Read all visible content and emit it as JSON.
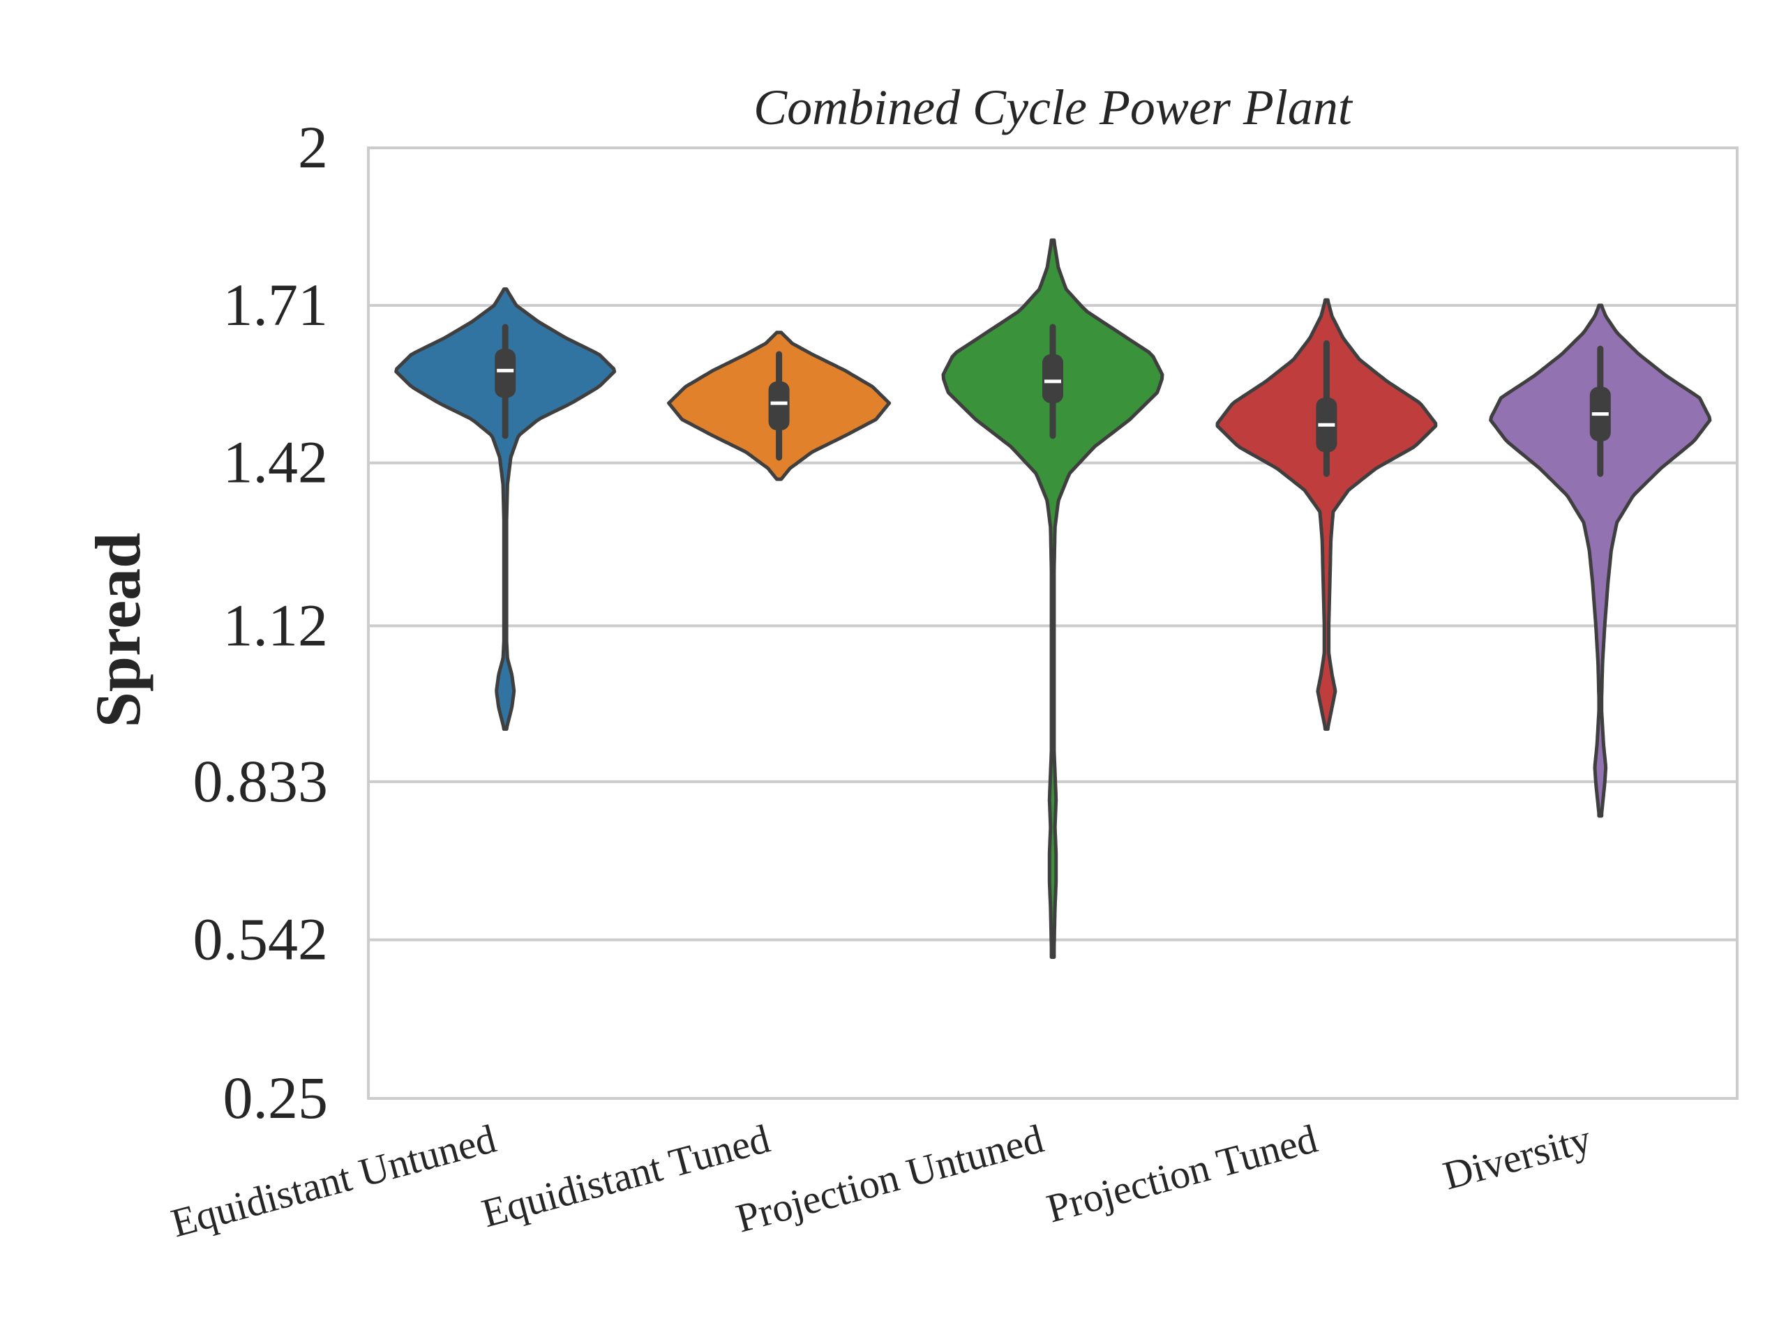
{
  "chart_data": {
    "type": "violin",
    "title": "Combined Cycle Power Plant",
    "xlabel": "",
    "ylabel": "Spread",
    "ylim": [
      0.25,
      2
    ],
    "yticks": [
      "0.25",
      "0.542",
      "0.833",
      "1.12",
      "1.42",
      "1.71",
      "2"
    ],
    "ytick_values": [
      0.25,
      0.542,
      0.833,
      1.12,
      1.42,
      1.71,
      2.0
    ],
    "grid": "horizontal",
    "legend": "none",
    "categories": [
      "Equidistant Untuned",
      "Equidistant Tuned",
      "Projection Untuned",
      "Projection Tuned",
      "Diversity"
    ],
    "series": [
      {
        "category": "Equidistant Untuned",
        "color": "#3274a1",
        "min": 0.93,
        "max": 1.74,
        "q1": 1.54,
        "median": 1.59,
        "q3": 1.63,
        "whisker_low": 1.47,
        "whisker_high": 1.67,
        "density": [
          [
            0.93,
            0.01
          ],
          [
            0.97,
            0.06
          ],
          [
            1.0,
            0.08
          ],
          [
            1.03,
            0.06
          ],
          [
            1.06,
            0.02
          ],
          [
            1.1,
            0.01
          ],
          [
            1.2,
            0.01
          ],
          [
            1.3,
            0.01
          ],
          [
            1.38,
            0.02
          ],
          [
            1.43,
            0.05
          ],
          [
            1.47,
            0.12
          ],
          [
            1.5,
            0.3
          ],
          [
            1.53,
            0.6
          ],
          [
            1.56,
            0.85
          ],
          [
            1.59,
            1.0
          ],
          [
            1.62,
            0.85
          ],
          [
            1.65,
            0.55
          ],
          [
            1.68,
            0.3
          ],
          [
            1.71,
            0.1
          ],
          [
            1.74,
            0.01
          ]
        ]
      },
      {
        "category": "Equidistant Tuned",
        "color": "#e1812c",
        "min": 1.39,
        "max": 1.66,
        "q1": 1.48,
        "median": 1.53,
        "q3": 1.57,
        "whisker_low": 1.43,
        "whisker_high": 1.62,
        "density": [
          [
            1.39,
            0.02
          ],
          [
            1.41,
            0.1
          ],
          [
            1.44,
            0.3
          ],
          [
            1.47,
            0.6
          ],
          [
            1.5,
            0.88
          ],
          [
            1.53,
            1.0
          ],
          [
            1.56,
            0.85
          ],
          [
            1.59,
            0.6
          ],
          [
            1.62,
            0.3
          ],
          [
            1.64,
            0.12
          ],
          [
            1.66,
            0.02
          ]
        ]
      },
      {
        "category": "Projection Untuned",
        "color": "#3a923a",
        "min": 0.51,
        "max": 1.83,
        "q1": 1.53,
        "median": 1.57,
        "q3": 1.62,
        "whisker_low": 1.47,
        "whisker_high": 1.67,
        "density": [
          [
            0.51,
            0.01
          ],
          [
            0.6,
            0.02
          ],
          [
            0.65,
            0.03
          ],
          [
            0.7,
            0.03
          ],
          [
            0.75,
            0.02
          ],
          [
            0.8,
            0.03
          ],
          [
            0.85,
            0.02
          ],
          [
            0.9,
            0.01
          ],
          [
            1.0,
            0.01
          ],
          [
            1.1,
            0.01
          ],
          [
            1.2,
            0.01
          ],
          [
            1.3,
            0.02
          ],
          [
            1.35,
            0.05
          ],
          [
            1.4,
            0.15
          ],
          [
            1.45,
            0.38
          ],
          [
            1.5,
            0.7
          ],
          [
            1.55,
            0.95
          ],
          [
            1.58,
            1.0
          ],
          [
            1.62,
            0.9
          ],
          [
            1.66,
            0.6
          ],
          [
            1.7,
            0.3
          ],
          [
            1.74,
            0.12
          ],
          [
            1.78,
            0.05
          ],
          [
            1.83,
            0.01
          ]
        ]
      },
      {
        "category": "Projection Tuned",
        "color": "#c03d3e",
        "min": 0.93,
        "max": 1.72,
        "q1": 1.44,
        "median": 1.49,
        "q3": 1.54,
        "whisker_low": 1.4,
        "whisker_high": 1.64,
        "density": [
          [
            0.93,
            0.01
          ],
          [
            0.97,
            0.05
          ],
          [
            1.0,
            0.08
          ],
          [
            1.03,
            0.05
          ],
          [
            1.07,
            0.02
          ],
          [
            1.12,
            0.02
          ],
          [
            1.2,
            0.03
          ],
          [
            1.28,
            0.04
          ],
          [
            1.33,
            0.06
          ],
          [
            1.37,
            0.2
          ],
          [
            1.41,
            0.45
          ],
          [
            1.45,
            0.8
          ],
          [
            1.49,
            1.0
          ],
          [
            1.53,
            0.85
          ],
          [
            1.57,
            0.55
          ],
          [
            1.61,
            0.3
          ],
          [
            1.65,
            0.15
          ],
          [
            1.69,
            0.05
          ],
          [
            1.72,
            0.01
          ]
        ]
      },
      {
        "category": "Diversity",
        "color": "#9372b2",
        "min": 0.77,
        "max": 1.71,
        "q1": 1.46,
        "median": 1.51,
        "q3": 1.56,
        "whisker_low": 1.4,
        "whisker_high": 1.63,
        "density": [
          [
            0.77,
            0.01
          ],
          [
            0.83,
            0.04
          ],
          [
            0.86,
            0.05
          ],
          [
            0.9,
            0.03
          ],
          [
            0.97,
            0.01
          ],
          [
            1.05,
            0.02
          ],
          [
            1.12,
            0.04
          ],
          [
            1.2,
            0.07
          ],
          [
            1.26,
            0.1
          ],
          [
            1.31,
            0.15
          ],
          [
            1.36,
            0.3
          ],
          [
            1.41,
            0.55
          ],
          [
            1.46,
            0.85
          ],
          [
            1.5,
            1.0
          ],
          [
            1.54,
            0.9
          ],
          [
            1.58,
            0.6
          ],
          [
            1.62,
            0.35
          ],
          [
            1.66,
            0.15
          ],
          [
            1.69,
            0.05
          ],
          [
            1.71,
            0.01
          ]
        ]
      }
    ]
  }
}
